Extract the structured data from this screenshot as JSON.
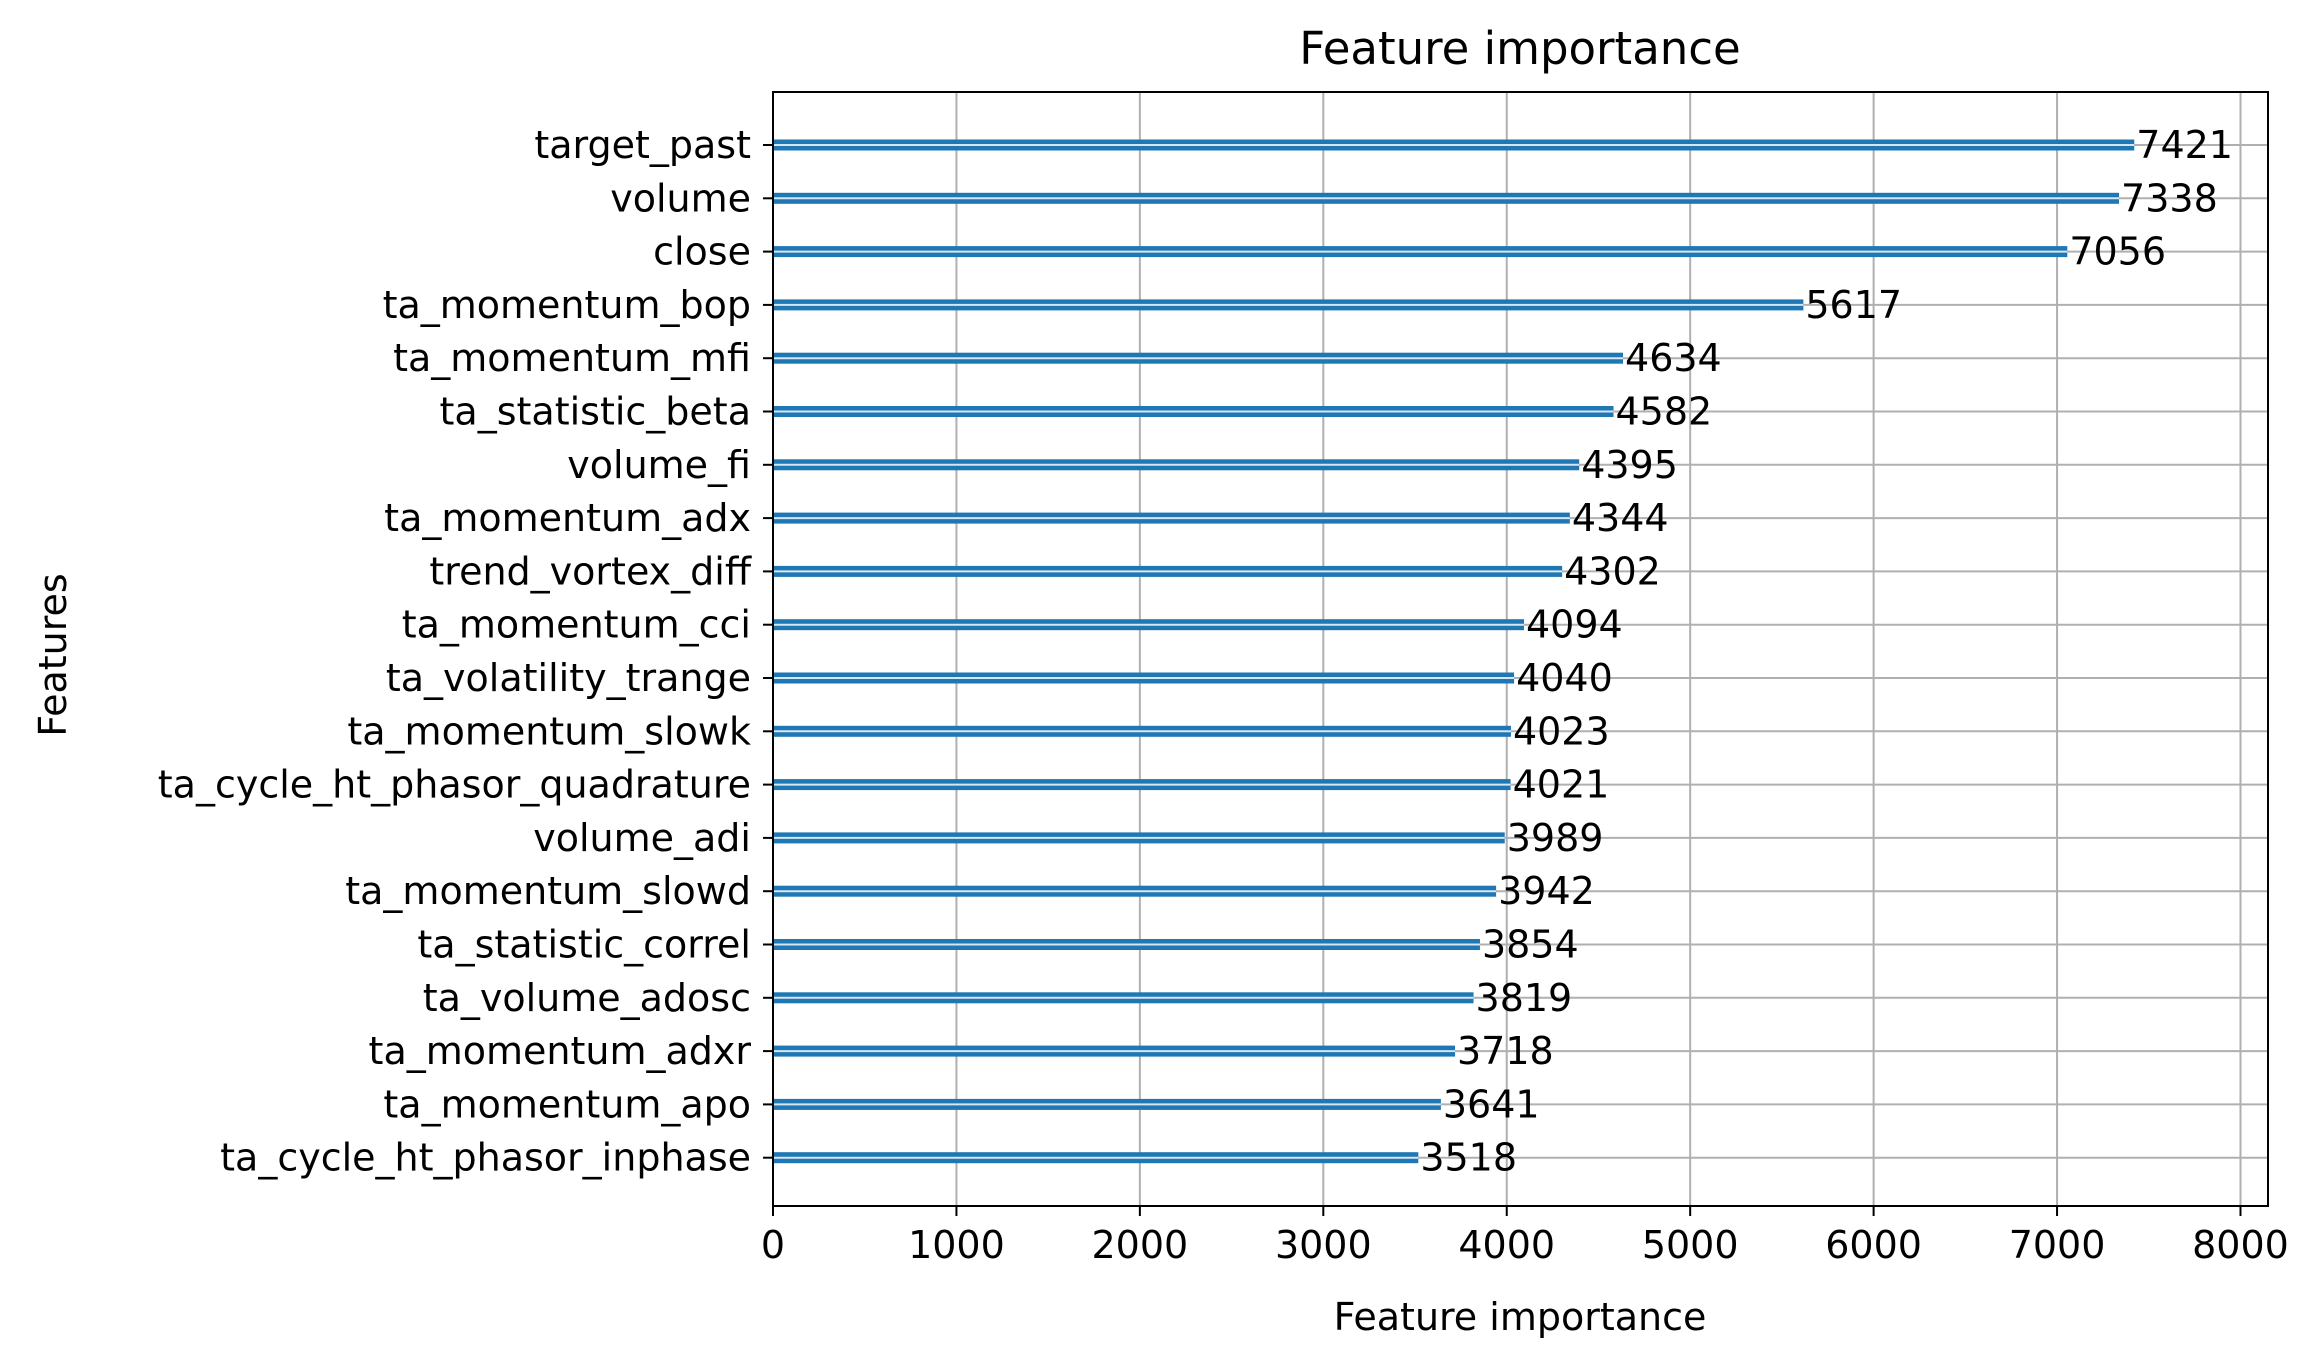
{
  "chart_data": {
    "type": "bar",
    "orientation": "horizontal",
    "title": "Feature importance",
    "xlabel": "Feature importance",
    "ylabel": "Features",
    "xlim": [
      0,
      8150
    ],
    "xticks": [
      0,
      1000,
      2000,
      3000,
      4000,
      5000,
      6000,
      7000,
      8000
    ],
    "grid": true,
    "colors": {
      "bar": "#1f77b4",
      "grid": "#b0b0b0"
    },
    "categories": [
      "target_past",
      "volume",
      "close",
      "ta_momentum_bop",
      "ta_momentum_mfi",
      "ta_statistic_beta",
      "volume_fi",
      "ta_momentum_adx",
      "trend_vortex_diff",
      "ta_momentum_cci",
      "ta_volatility_trange",
      "ta_momentum_slowk",
      "ta_cycle_ht_phasor_quadrature",
      "volume_adi",
      "ta_momentum_slowd",
      "ta_statistic_correl",
      "ta_volume_adosc",
      "ta_momentum_adxr",
      "ta_momentum_apo",
      "ta_cycle_ht_phasor_inphase"
    ],
    "values": [
      7421,
      7338,
      7056,
      5617,
      4634,
      4582,
      4395,
      4344,
      4302,
      4094,
      4040,
      4023,
      4021,
      3989,
      3942,
      3854,
      3819,
      3718,
      3641,
      3518
    ],
    "data_labels": [
      "7421",
      "7338",
      "7056",
      "5617",
      "4634",
      "4582",
      "4395",
      "4344",
      "4302",
      "4094",
      "4040",
      "4023",
      "4021",
      "3989",
      "3942",
      "3854",
      "3819",
      "3718",
      "3641",
      "3518"
    ]
  }
}
